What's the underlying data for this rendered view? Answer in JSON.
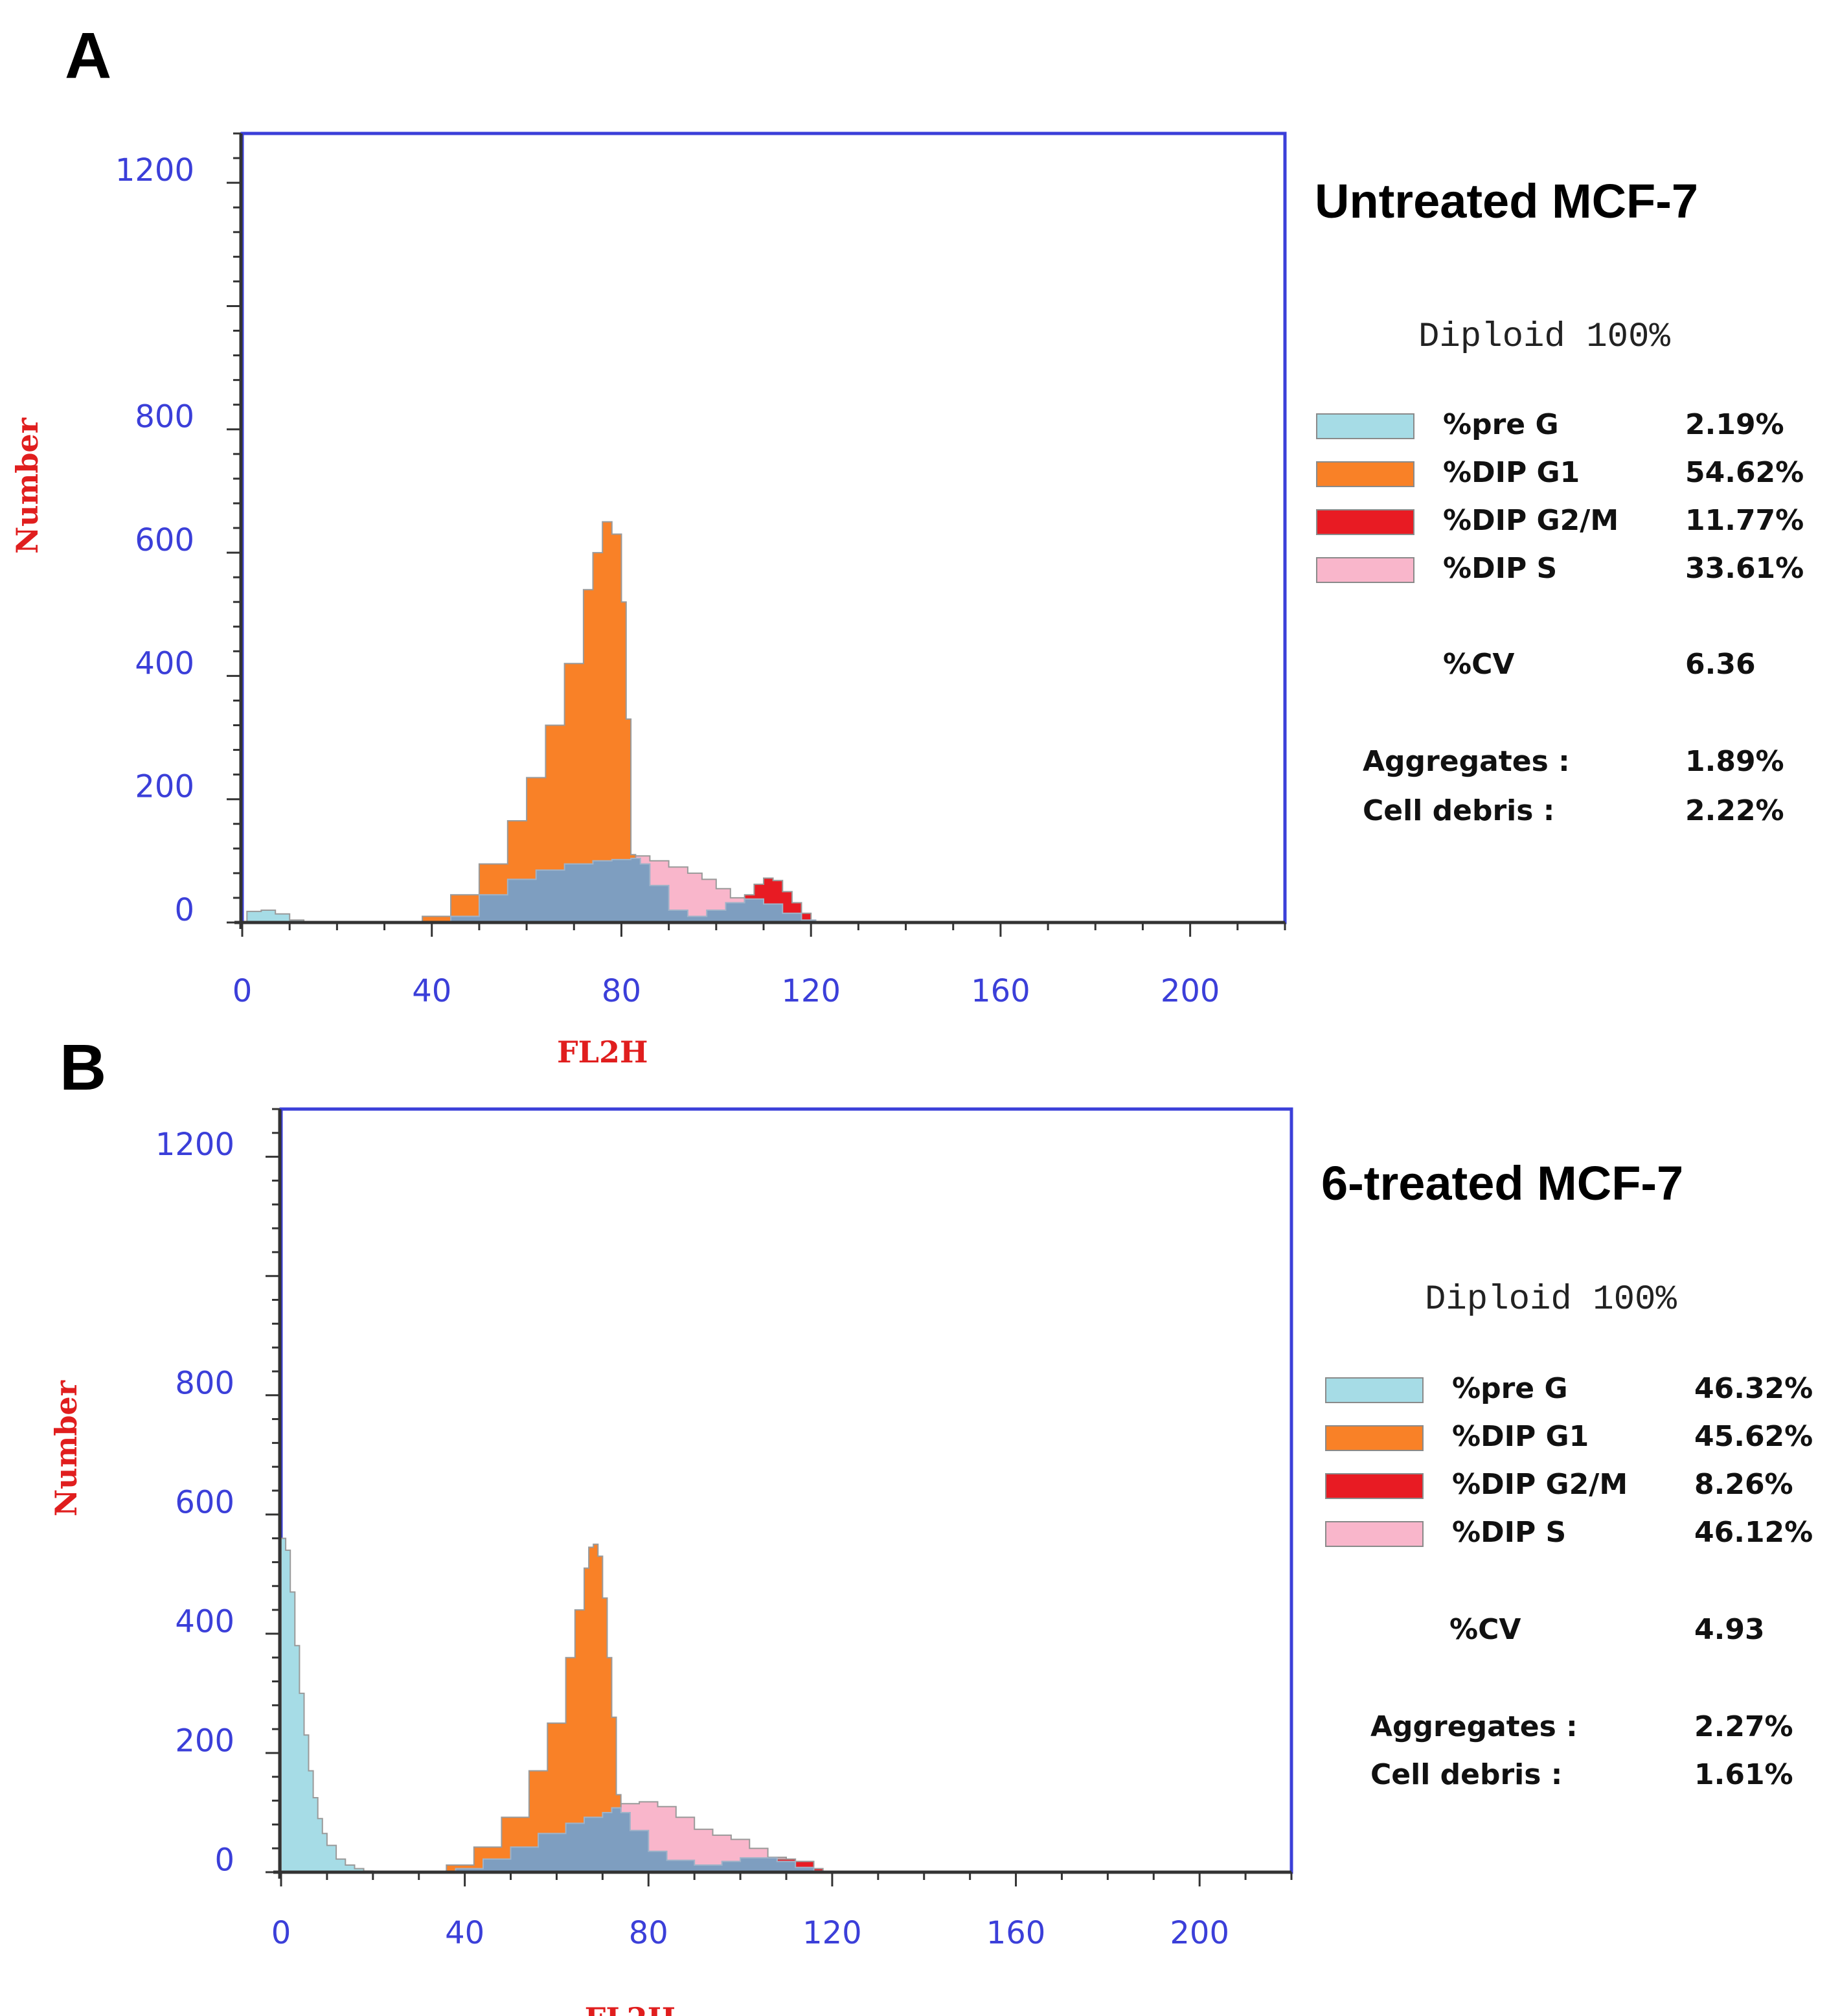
{
  "chart_data": [
    {
      "panel_label": "A",
      "type": "area",
      "title": "Untreated MCF-7",
      "xlabel": "FL2H",
      "ylabel": "Number",
      "xlim": [
        0,
        220
      ],
      "ylim": [
        0,
        1280
      ],
      "x_ticks": [
        "0",
        "40",
        "80",
        "120",
        "160",
        "200"
      ],
      "y_ticks": [
        "0",
        "200",
        "400",
        "600",
        "800",
        "1200"
      ],
      "y_tick_values": [
        20,
        220,
        420,
        620,
        820,
        1220
      ],
      "series": [
        {
          "name": "%pre G",
          "color": "#a6dce6",
          "points": [
            [
              1,
              18
            ],
            [
              4,
              20
            ],
            [
              7,
              14
            ],
            [
              10,
              4
            ],
            [
              13,
              0
            ]
          ]
        },
        {
          "name": "%DIP G1",
          "color": "#f98127",
          "points": [
            [
              32,
              0
            ],
            [
              38,
              10
            ],
            [
              44,
              45
            ],
            [
              50,
              95
            ],
            [
              56,
              165
            ],
            [
              60,
              235
            ],
            [
              64,
              320
            ],
            [
              68,
              420
            ],
            [
              72,
              540
            ],
            [
              74,
              600
            ],
            [
              76,
              650
            ],
            [
              78,
              630
            ],
            [
              80,
              520
            ],
            [
              81,
              330
            ],
            [
              82,
              110
            ],
            [
              83,
              30
            ],
            [
              84,
              0
            ]
          ]
        },
        {
          "name": "%DIP G2/M",
          "color": "#e81b23",
          "points": [
            [
              100,
              0
            ],
            [
              104,
              20
            ],
            [
              106,
              45
            ],
            [
              108,
              62
            ],
            [
              110,
              72
            ],
            [
              112,
              68
            ],
            [
              114,
              50
            ],
            [
              116,
              32
            ],
            [
              118,
              15
            ],
            [
              120,
              3
            ],
            [
              121,
              0
            ]
          ]
        },
        {
          "name": "%DIP S",
          "color": "#f9b6cb",
          "points": [
            [
              82,
              108
            ],
            [
              86,
              100
            ],
            [
              90,
              90
            ],
            [
              94,
              80
            ],
            [
              97,
              70
            ],
            [
              100,
              55
            ],
            [
              103,
              40
            ],
            [
              106,
              25
            ],
            [
              108,
              10
            ],
            [
              110,
              0
            ]
          ]
        }
      ],
      "s_phase_base": {
        "color": "#7e9ec0",
        "points": [
          [
            36,
            0
          ],
          [
            44,
            10
          ],
          [
            50,
            45
          ],
          [
            56,
            70
          ],
          [
            62,
            85
          ],
          [
            68,
            95
          ],
          [
            74,
            100
          ],
          [
            78,
            102
          ],
          [
            82,
            104
          ],
          [
            84,
            95
          ],
          [
            86,
            60
          ],
          [
            90,
            20
          ],
          [
            94,
            10
          ],
          [
            98,
            20
          ],
          [
            102,
            32
          ],
          [
            106,
            38
          ],
          [
            110,
            30
          ],
          [
            114,
            15
          ],
          [
            118,
            4
          ],
          [
            121,
            0
          ]
        ]
      },
      "legend": [
        {
          "label": "%pre G",
          "value": "2.19%",
          "color": "#a6dce6"
        },
        {
          "label": "%DIP G1",
          "value": "54.62%",
          "color": "#f98127"
        },
        {
          "label": "%DIP G2/M",
          "value": "11.77%",
          "color": "#e81b23"
        },
        {
          "label": "%DIP S",
          "value": "33.61%",
          "color": "#f9b6cb"
        }
      ],
      "diploid": "Diploid 100%",
      "cv_label": "%CV",
      "cv_value": "6.36",
      "aggregates_label": "Aggregates :",
      "aggregates_value": "1.89%",
      "debris_label": "Cell debris  :",
      "debris_value": "2.22%"
    },
    {
      "panel_label": "B",
      "type": "area",
      "title": "6-treated  MCF-7",
      "xlabel": "FL2H",
      "ylabel": "Number",
      "xlim": [
        0,
        220
      ],
      "ylim": [
        0,
        1280
      ],
      "x_ticks": [
        "0",
        "40",
        "80",
        "120",
        "160",
        "200"
      ],
      "y_ticks": [
        "0",
        "200",
        "400",
        "600",
        "800",
        "1200"
      ],
      "y_tick_values": [
        20,
        220,
        420,
        620,
        820,
        1220
      ],
      "series": [
        {
          "name": "%pre G",
          "color": "#a6dce6",
          "points": [
            [
              0,
              560
            ],
            [
              1,
              540
            ],
            [
              2,
              470
            ],
            [
              3,
              380
            ],
            [
              4,
              300
            ],
            [
              5,
              230
            ],
            [
              6,
              170
            ],
            [
              7,
              125
            ],
            [
              8,
              90
            ],
            [
              9,
              65
            ],
            [
              10,
              45
            ],
            [
              12,
              22
            ],
            [
              14,
              12
            ],
            [
              16,
              6
            ],
            [
              18,
              2
            ],
            [
              20,
              0
            ]
          ]
        },
        {
          "name": "%DIP G1",
          "color": "#f98127",
          "points": [
            [
              30,
              0
            ],
            [
              36,
              12
            ],
            [
              42,
              42
            ],
            [
              48,
              92
            ],
            [
              54,
              170
            ],
            [
              58,
              250
            ],
            [
              62,
              360
            ],
            [
              64,
              440
            ],
            [
              66,
              510
            ],
            [
              67,
              545
            ],
            [
              68,
              550
            ],
            [
              69,
              530
            ],
            [
              70,
              460
            ],
            [
              71,
              360
            ],
            [
              72,
              260
            ],
            [
              73,
              130
            ],
            [
              74,
              30
            ],
            [
              75,
              0
            ]
          ]
        },
        {
          "name": "%DIP G2/M",
          "color": "#e81b23",
          "points": [
            [
              100,
              0
            ],
            [
              104,
              10
            ],
            [
              108,
              22
            ],
            [
              112,
              18
            ],
            [
              116,
              6
            ],
            [
              118,
              0
            ]
          ]
        },
        {
          "name": "%DIP S",
          "color": "#f9b6cb",
          "points": [
            [
              72,
              110
            ],
            [
              74,
              115
            ],
            [
              78,
              118
            ],
            [
              82,
              110
            ],
            [
              86,
              92
            ],
            [
              90,
              72
            ],
            [
              94,
              62
            ],
            [
              98,
              55
            ],
            [
              102,
              40
            ],
            [
              106,
              25
            ],
            [
              110,
              12
            ],
            [
              114,
              4
            ],
            [
              116,
              0
            ]
          ]
        }
      ],
      "s_phase_base": {
        "color": "#7e9ec0",
        "points": [
          [
            30,
            0
          ],
          [
            38,
            6
          ],
          [
            44,
            22
          ],
          [
            50,
            42
          ],
          [
            56,
            65
          ],
          [
            62,
            82
          ],
          [
            66,
            92
          ],
          [
            70,
            100
          ],
          [
            72,
            108
          ],
          [
            74,
            100
          ],
          [
            76,
            70
          ],
          [
            80,
            35
          ],
          [
            84,
            20
          ],
          [
            90,
            12
          ],
          [
            96,
            18
          ],
          [
            100,
            24
          ],
          [
            104,
            24
          ],
          [
            108,
            18
          ],
          [
            112,
            8
          ],
          [
            116,
            2
          ],
          [
            118,
            0
          ]
        ]
      },
      "legend": [
        {
          "label": "%pre G",
          "value": "46.32%",
          "color": "#a6dce6"
        },
        {
          "label": "%DIP G1",
          "value": "45.62%",
          "color": "#f98127"
        },
        {
          "label": "%DIP G2/M",
          "value": "8.26%",
          "color": "#e81b23"
        },
        {
          "label": "%DIP S",
          "value": "46.12%",
          "color": "#f9b6cb"
        }
      ],
      "diploid": "Diploid 100%",
      "cv_label": "%CV",
      "cv_value": "4.93",
      "aggregates_label": "Aggregates :",
      "aggregates_value": "2.27%",
      "debris_label": "Cell debris  :",
      "debris_value": "1.61%"
    }
  ]
}
